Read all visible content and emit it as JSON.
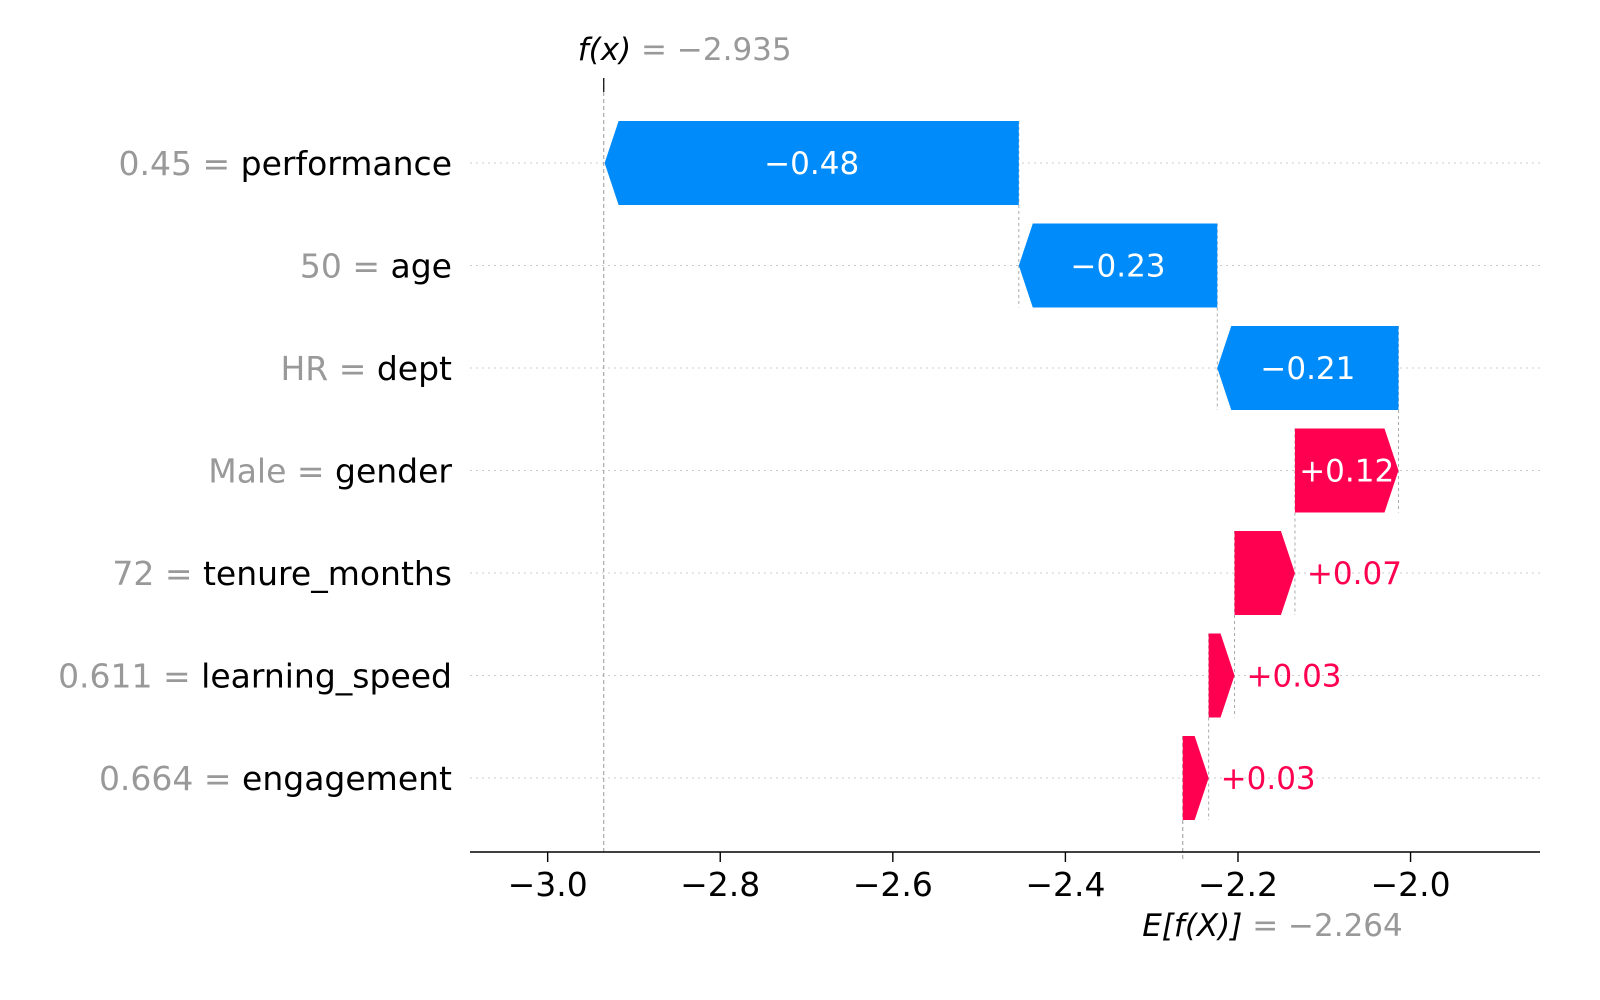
{
  "chart_data": {
    "type": "waterfall",
    "fx_label": "f(x)",
    "fx_value": "−2.935",
    "ef_label": "E[f(X)]",
    "ef_value": "−2.264",
    "base_value": -2.264,
    "output_value": -2.935,
    "features": [
      {
        "value": "0.45",
        "name": "performance",
        "shap": -0.48,
        "label": "−0.48"
      },
      {
        "value": "50",
        "name": "age",
        "shap": -0.23,
        "label": "−0.23"
      },
      {
        "value": "HR",
        "name": "dept",
        "shap": -0.21,
        "label": "−0.21"
      },
      {
        "value": "Male",
        "name": "gender",
        "shap": 0.12,
        "label": "+0.12"
      },
      {
        "value": "72",
        "name": "tenure_months",
        "shap": 0.07,
        "label": "+0.07"
      },
      {
        "value": "0.611",
        "name": "learning_speed",
        "shap": 0.03,
        "label": "+0.03"
      },
      {
        "value": "0.664",
        "name": "engagement",
        "shap": 0.03,
        "label": "+0.03"
      }
    ],
    "xaxis": {
      "ticks": [
        -3.0,
        -2.8,
        -2.6,
        -2.4,
        -2.2,
        -2.0
      ],
      "tick_labels": [
        "−3.0",
        "−2.8",
        "−2.6",
        "−2.4",
        "−2.2",
        "−2.0"
      ],
      "xlim": [
        -3.09,
        -1.85
      ]
    },
    "colors": {
      "negative": "#008bfb",
      "positive": "#ff0051",
      "label_gray": "#999999",
      "axis": "#000000",
      "grid": "#cccccc"
    }
  }
}
